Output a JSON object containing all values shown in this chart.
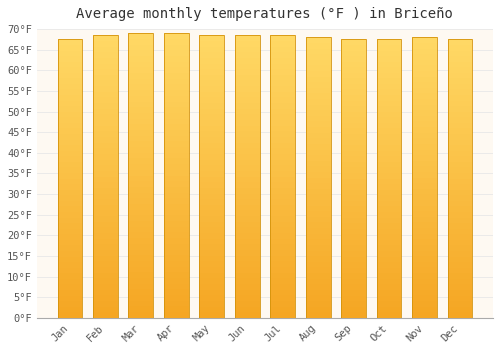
{
  "title": "Average monthly temperatures (°F ) in Briceño",
  "months": [
    "Jan",
    "Feb",
    "Mar",
    "Apr",
    "May",
    "Jun",
    "Jul",
    "Aug",
    "Sep",
    "Oct",
    "Nov",
    "Dec"
  ],
  "values": [
    67.5,
    68.5,
    69.0,
    69.0,
    68.5,
    68.5,
    68.5,
    68.0,
    67.5,
    67.5,
    68.0,
    67.5
  ],
  "bar_color_bottom": "#F5A623",
  "bar_color_top": "#FFD966",
  "bar_edge_color": "#D4920A",
  "ylim": [
    0,
    70
  ],
  "ytick_step": 5,
  "background_color": "#ffffff",
  "plot_bg_color": "#fef9f2",
  "grid_color": "#e8e8e8",
  "title_fontsize": 10,
  "tick_fontsize": 7.5,
  "title_color": "#333333",
  "tick_color": "#555555",
  "font_family": "monospace",
  "bar_width": 0.7,
  "figsize": [
    5.0,
    3.5
  ],
  "dpi": 100
}
